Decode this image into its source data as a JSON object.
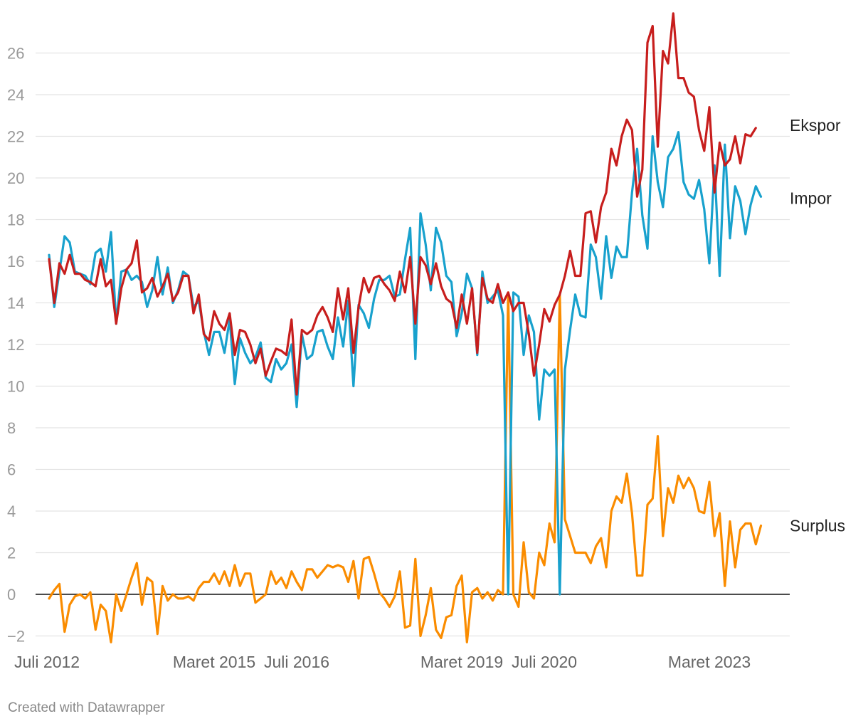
{
  "credit": "Created with Datawrapper",
  "chart_data": {
    "type": "line",
    "ylim": [
      -2,
      27
    ],
    "yticks": [
      -2,
      0,
      2,
      4,
      6,
      8,
      10,
      12,
      14,
      16,
      18,
      20,
      22,
      24,
      26
    ],
    "x_tick_labels": [
      {
        "label": "Juli 2012",
        "index": 0
      },
      {
        "label": "Maret 2015",
        "index": 32
      },
      {
        "label": "Juli 2016",
        "index": 48
      },
      {
        "label": "Maret 2019",
        "index": 80
      },
      {
        "label": "Juli 2020",
        "index": 96
      },
      {
        "label": "Maret 2023",
        "index": 128
      }
    ],
    "colors": {
      "Ekspor": "#c71e1d",
      "Impor": "#18a1cd",
      "Surplus": "#fa8c00"
    },
    "series": [
      {
        "name": "Ekspor",
        "values": [
          16.1,
          14,
          15.9,
          15.4,
          16.3,
          15.4,
          15.4,
          15.1,
          15,
          14.8,
          16.1,
          14.8,
          15.1,
          13,
          14.7,
          15.6,
          15.9,
          17,
          14.5,
          14.7,
          15.2,
          14.3,
          14.8,
          15.4,
          14.1,
          14.5,
          15.3,
          15.3,
          13.5,
          14.4,
          12.5,
          12.2,
          13.6,
          13,
          12.7,
          13.5,
          11.5,
          12.7,
          12.6,
          12,
          11.1,
          11.8,
          10.5,
          11.2,
          11.8,
          11.7,
          11.5,
          13.2,
          9.6,
          12.7,
          12.5,
          12.7,
          13.4,
          13.8,
          13.3,
          12.6,
          14.7,
          13.2,
          14.7,
          11.6,
          13.8,
          15.2,
          14.5,
          15.2,
          15.3,
          14.9,
          14.6,
          14.1,
          15.5,
          14.5,
          16.2,
          13,
          16.2,
          15.8,
          14.9,
          15.9,
          14.8,
          14.2,
          14,
          12.8,
          14.4,
          13,
          14.7,
          11.6,
          15.2,
          14.2,
          14,
          14.9,
          14,
          14.5,
          13.6,
          14,
          14,
          12.5,
          10.5,
          12,
          13.7,
          13.1,
          13.9,
          14.4,
          15.3,
          16.5,
          15.3,
          15.3,
          18.3,
          18.4,
          16.9,
          18.6,
          19.3,
          21.4,
          20.6,
          22,
          22.8,
          22.3,
          19.1,
          20.4,
          26.5,
          27.3,
          21.5,
          26.1,
          25.5,
          27.9,
          24.8,
          24.8,
          24.1,
          23.9,
          22.3,
          21.3,
          23.4,
          19.3,
          21.7,
          20.6,
          20.9,
          22,
          20.7,
          22.1,
          22,
          22.4
        ]
      },
      {
        "name": "Impor",
        "values": [
          16.3,
          13.8,
          15.5,
          17.2,
          16.9,
          15.5,
          15.4,
          15.3,
          14.9,
          16.4,
          16.6,
          15.5,
          17.4,
          13,
          15.5,
          15.6,
          15.1,
          15.3,
          15,
          13.8,
          14.6,
          16.2,
          14.4,
          15.7,
          14,
          14.6,
          15.5,
          15.3,
          13.8,
          14.1,
          12.6,
          11.5,
          12.6,
          12.6,
          11.6,
          13.2,
          10.1,
          12.3,
          11.6,
          11.1,
          11.4,
          12.1,
          10.4,
          10.2,
          11.3,
          10.8,
          11.1,
          12,
          9,
          12.5,
          11.3,
          11.5,
          12.6,
          12.7,
          11.9,
          11.3,
          13.3,
          11.9,
          14.1,
          10,
          13.9,
          13.5,
          12.8,
          14.2,
          15.1,
          15.1,
          15.3,
          14.3,
          14.4,
          16.1,
          17.6,
          11.3,
          18.3,
          16.8,
          14.6,
          17.6,
          16.9,
          15.3,
          15,
          12.4,
          13.5,
          15.4,
          14.7,
          11.5,
          15.5,
          14,
          14.3,
          14.6,
          13.4,
          0,
          14.5,
          14.3,
          11.5,
          13.4,
          12.6,
          8.4,
          10.8,
          10.5,
          10.8,
          0,
          10.8,
          12.7,
          14.4,
          13.4,
          13.3,
          16.8,
          16.2,
          14.2,
          17.2,
          15.2,
          16.7,
          16.2,
          16.2,
          19.3,
          21.4,
          18.2,
          16.6,
          22,
          19.8,
          18.6,
          21,
          21.4,
          22.2,
          19.8,
          19.2,
          19,
          19.9,
          18.5,
          15.9,
          20.6,
          15.3,
          21.6,
          17.1,
          19.6,
          18.9,
          17.3,
          18.7,
          19.6,
          19.1
        ]
      },
      {
        "name": "Surplus",
        "values": [
          -0.2,
          0.2,
          0.5,
          -1.8,
          -0.5,
          -0.1,
          0,
          -0.2,
          0.1,
          -1.7,
          -0.5,
          -0.8,
          -2.3,
          0,
          -0.8,
          0,
          0.8,
          1.5,
          -0.5,
          0.8,
          0.6,
          -1.9,
          0.4,
          -0.3,
          0,
          -0.2,
          -0.2,
          -0.1,
          -0.3,
          0.3,
          0.6,
          0.6,
          1,
          0.5,
          1.1,
          0.4,
          1.4,
          0.4,
          1,
          1,
          -0.4,
          -0.2,
          0,
          1.1,
          0.5,
          0.8,
          0.3,
          1.1,
          0.6,
          0.2,
          1.2,
          1.2,
          0.8,
          1.1,
          1.4,
          1.3,
          1.4,
          1.3,
          0.6,
          1.6,
          -0.2,
          1.7,
          1.8,
          1,
          0.1,
          -0.2,
          -0.6,
          -0.1,
          1.1,
          -1.6,
          -1.5,
          1.7,
          -2,
          -1,
          0.3,
          -1.7,
          -2.1,
          -1.1,
          -1,
          0.4,
          0.9,
          -2.3,
          0.1,
          0.3,
          -0.2,
          0.1,
          -0.3,
          0.2,
          0,
          14.5,
          0,
          -0.6,
          2.5,
          0.1,
          -0.2,
          2,
          1.4,
          3.4,
          2.5,
          14.4,
          3.6,
          2.8,
          2,
          2,
          2,
          1.5,
          2.3,
          2.7,
          1.3,
          4,
          4.7,
          4.4,
          5.8,
          3.9,
          0.9,
          0.9,
          4.3,
          4.6,
          7.6,
          2.8,
          5.1,
          4.4,
          5.7,
          5.1,
          5.6,
          5.1,
          4,
          3.9,
          5.4,
          2.8,
          3.9,
          0.4,
          3.5,
          1.3,
          3.1,
          3.4,
          3.4,
          2.4,
          3.3
        ]
      }
    ]
  }
}
